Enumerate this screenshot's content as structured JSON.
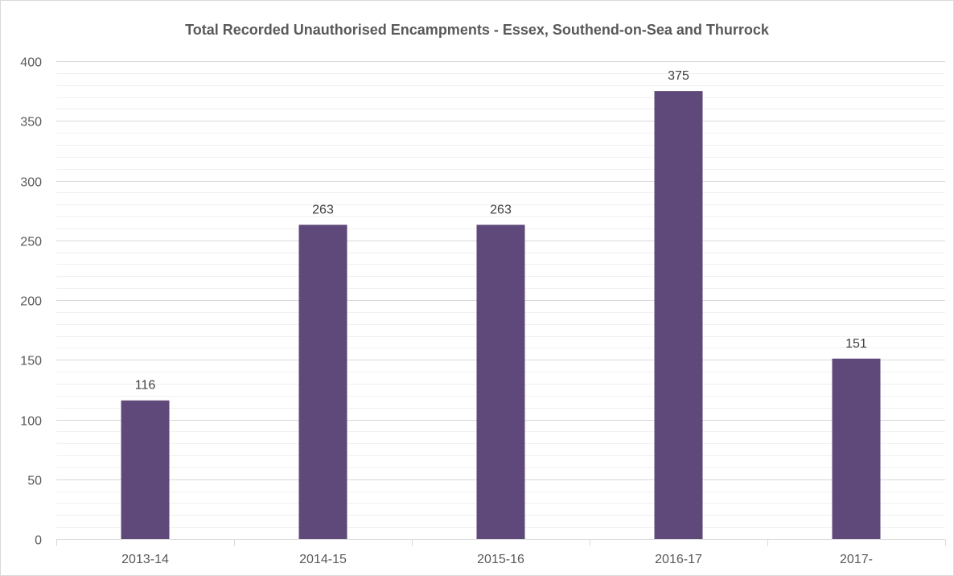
{
  "chart_data": {
    "type": "bar",
    "title": "Total Recorded Unauthorised Encampments - Essex, Southend-on-Sea and Thurrock",
    "xlabel": "",
    "ylabel": "",
    "categories": [
      "2013-14",
      "2014-15",
      "2015-16",
      "2016-17",
      "2017-"
    ],
    "values": [
      116,
      263,
      263,
      375,
      151
    ],
    "data_labels": [
      "116",
      "263",
      "263",
      "375",
      "151"
    ],
    "ylim": [
      0,
      400
    ],
    "yticks": [
      0,
      50,
      100,
      150,
      200,
      250,
      300,
      350,
      400
    ],
    "ytick_labels": [
      "0",
      "50",
      "100",
      "150",
      "200",
      "250",
      "300",
      "350",
      "400"
    ],
    "grid": true,
    "legend": "none",
    "colors": {
      "bar": "#5f497a",
      "grid_major": "#d9d9d9",
      "grid_minor": "#f0f0f0",
      "text": "#595959"
    }
  }
}
